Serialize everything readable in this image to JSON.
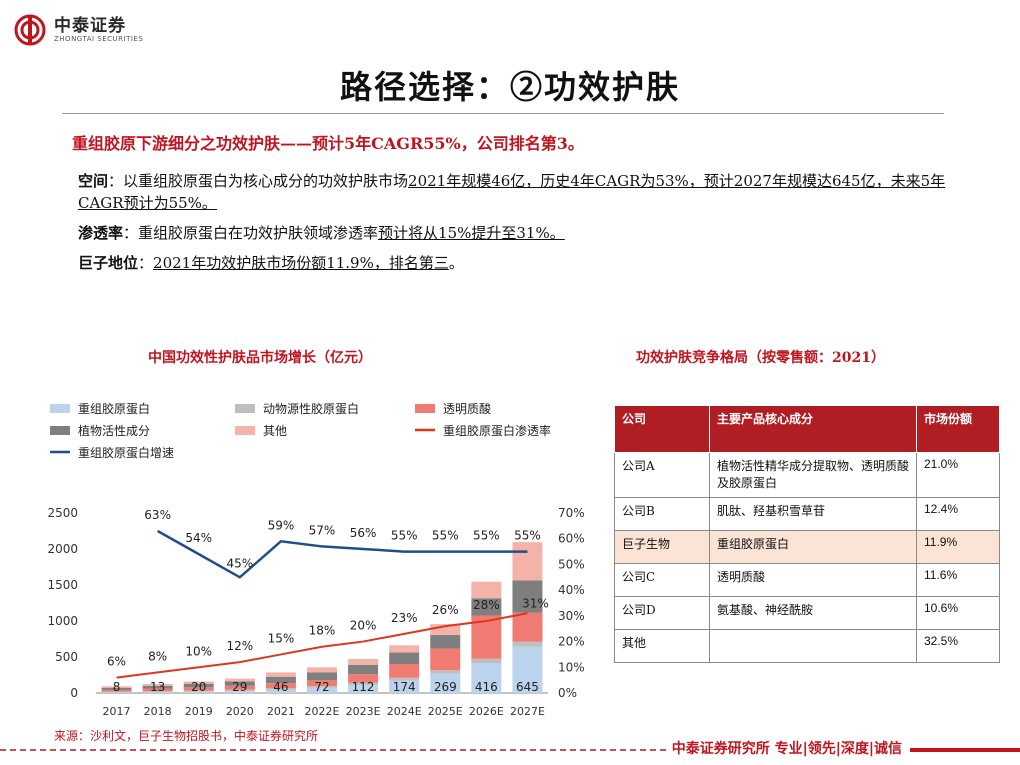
{
  "brand": {
    "name_cn": "中泰证券",
    "name_en": "ZHONGTAI SECURITIES",
    "color": "#c0151e"
  },
  "title": "路径选择：②功效护肤",
  "headline": "重组胶原下游细分之功效护肤——预计5年CAGR55%，公司排名第3。",
  "bullets": [
    {
      "label": "空间",
      "sep": "：",
      "pre": "以重组胶原蛋白为核心成分的功效护肤市场",
      "ul": "2021年规模46亿，历史4年CAGR为53%，预计2027年规模达645亿，未来5年CAGR预计为55%。",
      "post": ""
    },
    {
      "label": "渗透率",
      "sep": "：",
      "pre": "重组胶原蛋白在功效护肤领域渗透率",
      "ul": "预计将从15%提升至31%。",
      "post": ""
    },
    {
      "label": "巨子地位",
      "sep": "：",
      "pre": "",
      "ul": "2021年功效护肤市场份额11.9%，排名第三",
      "post": "。"
    }
  ],
  "chart_title": "中国功效性护肤品市场增长（亿元）",
  "table_title": "功效护肤竞争格局（按零售额：2021）",
  "chart_data": {
    "type": "bar",
    "stacked": true,
    "categories": [
      "2017",
      "2018",
      "2019",
      "2020",
      "2021",
      "2022E",
      "2023E",
      "2024E",
      "2025E",
      "2026E",
      "2027E"
    ],
    "series": [
      {
        "name": "重组胶原蛋白",
        "color": "#bcd3ee",
        "values": [
          8,
          13,
          20,
          29,
          46,
          72,
          112,
          174,
          269,
          416,
          645
        ]
      },
      {
        "name": "动物源性胶原蛋白",
        "color": "#bfbfbf",
        "values": [
          10,
          12,
          14,
          16,
          20,
          24,
          30,
          38,
          48,
          60,
          70
        ]
      },
      {
        "name": "透明质酸",
        "color": "#f07b73",
        "values": [
          25,
          35,
          45,
          55,
          70,
          80,
          120,
          190,
          300,
          600,
          400
        ]
      },
      {
        "name": "植物活性成分",
        "color": "#7f7f7f",
        "values": [
          30,
          40,
          50,
          60,
          90,
          110,
          130,
          160,
          190,
          240,
          450
        ]
      },
      {
        "name": "其他",
        "color": "#f4b3a8",
        "values": [
          20,
          25,
          30,
          40,
          60,
          70,
          80,
          100,
          150,
          230,
          530
        ]
      }
    ],
    "bar_labels": [
      "8",
      "13",
      "20",
      "29",
      "46",
      "72",
      "112",
      "174",
      "269",
      "416",
      "645"
    ],
    "lines": [
      {
        "name": "重组胶原蛋白渗透率",
        "color": "#e0351f",
        "axis": "right",
        "values": [
          6,
          8,
          10,
          12,
          15,
          18,
          20,
          23,
          26,
          28,
          31
        ],
        "labels": [
          "6%",
          "8%",
          "10%",
          "12%",
          "15%",
          "18%",
          "20%",
          "23%",
          "26%",
          "28%",
          "31%"
        ]
      },
      {
        "name": "重组胶原蛋白增速",
        "color": "#1f4e8c",
        "axis": "right",
        "values": [
          null,
          63,
          54,
          45,
          59,
          57,
          56,
          55,
          55,
          55,
          55
        ],
        "labels": [
          "",
          "63%",
          "54%",
          "45%",
          "59%",
          "57%",
          "56%",
          "55%",
          "55%",
          "55%",
          "55%"
        ]
      }
    ],
    "y_left": {
      "min": 0,
      "max": 2500,
      "ticks": [
        "0",
        "500",
        "1000",
        "1500",
        "2000",
        "2500"
      ]
    },
    "y_right": {
      "min": 0,
      "max": 70,
      "ticks": [
        "0%",
        "10%",
        "20%",
        "30%",
        "40%",
        "50%",
        "60%",
        "70%"
      ]
    },
    "legend_position": "top"
  },
  "table": {
    "headers": [
      "公司",
      "主要产品核心成分",
      "市场份额"
    ],
    "rows": [
      {
        "company": "公司A",
        "ingredients": "植物活性精华成分提取物、透明质酸及胶原蛋白",
        "share": "21.0%",
        "highlight": false
      },
      {
        "company": "公司B",
        "ingredients": "肌肽、羟基积雪草苷",
        "share": "12.4%",
        "highlight": false
      },
      {
        "company": "巨子生物",
        "ingredients": "重组胶原蛋白",
        "share": "11.9%",
        "highlight": true
      },
      {
        "company": "公司C",
        "ingredients": "透明质酸",
        "share": "11.6%",
        "highlight": false
      },
      {
        "company": "公司D",
        "ingredients": "氨基酸、神经酰胺",
        "share": "10.6%",
        "highlight": false
      },
      {
        "company": "其他",
        "ingredients": "",
        "share": "32.5%",
        "highlight": false
      }
    ]
  },
  "source": "来源：沙利文，巨子生物招股书，中泰证券研究所",
  "footer": "中泰证券研究所 专业|领先|深度|诚信"
}
